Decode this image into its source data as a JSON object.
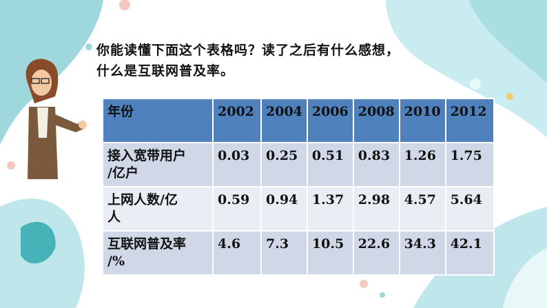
{
  "question": [
    "你能读懂下面这个表格吗？读了之后有什么感想，",
    "什么是互联网普及率。"
  ],
  "table": {
    "header": [
      "年份",
      "2002",
      "2004",
      "2006",
      "2008",
      "2010",
      "2012"
    ],
    "rows": [
      {
        "label": [
          "接入宽带用户",
          "/亿户"
        ],
        "cells": [
          "0.03",
          "0.25",
          "0.51",
          "0.83",
          "1.26",
          "1.75"
        ]
      },
      {
        "label": [
          "上网人数/亿",
          "人"
        ],
        "cells": [
          "0.59",
          "0.94",
          "1.37",
          "2.98",
          "4.57",
          "5.64"
        ]
      },
      {
        "label": [
          "互联网普及率",
          "/%"
        ],
        "cells": [
          "4.6",
          "7.3",
          "10.5",
          "22.6",
          "34.3",
          "42.1"
        ]
      }
    ]
  }
}
